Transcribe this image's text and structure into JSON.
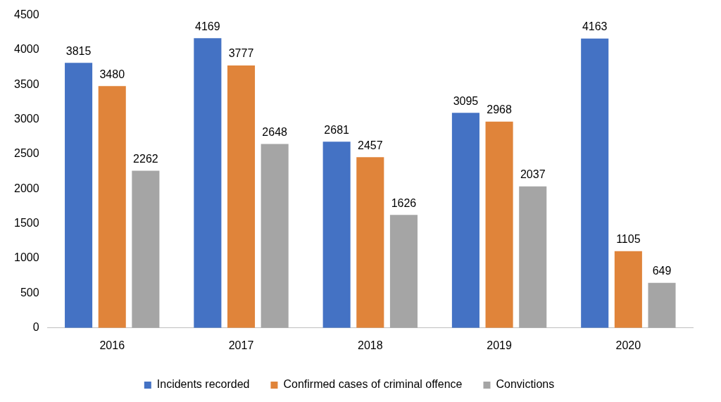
{
  "chart_data": {
    "type": "bar",
    "categories": [
      "2016",
      "2017",
      "2018",
      "2019",
      "2020"
    ],
    "series": [
      {
        "name": "Incidents recorded",
        "color": "#4472c4",
        "values": [
          3815,
          4169,
          2681,
          3095,
          4163
        ]
      },
      {
        "name": "Confirmed cases of criminal offence",
        "color": "#e0843a",
        "values": [
          3480,
          3777,
          2457,
          2968,
          1105
        ]
      },
      {
        "name": "Convictions",
        "color": "#a5a5a5",
        "values": [
          2262,
          2648,
          1626,
          2037,
          649
        ]
      }
    ],
    "ylim": [
      0,
      4500
    ],
    "yticks": [
      0,
      500,
      1000,
      1500,
      2000,
      2500,
      3000,
      3500,
      4000,
      4500
    ],
    "grid": false,
    "legend": "bottom",
    "data_labels": true
  }
}
